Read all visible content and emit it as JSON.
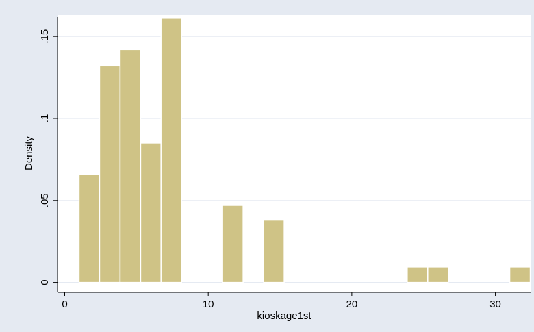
{
  "chart_data": {
    "type": "bar",
    "xlabel": "kioskage1st",
    "ylabel": "Density",
    "xlim": [
      -0.5,
      32.5
    ],
    "ylim": [
      -0.006,
      0.163
    ],
    "x_ticks": [
      0,
      10,
      20,
      30
    ],
    "x_tick_labels": [
      "0",
      "10",
      "20",
      "30"
    ],
    "y_ticks": [
      0,
      0.05,
      0.1,
      0.15
    ],
    "y_tick_labels": [
      "0",
      ".05",
      ".1",
      ".15"
    ],
    "grid": true,
    "bin_width": 1.43,
    "bins": [
      {
        "start": 1.0,
        "value": 0.066
      },
      {
        "start": 2.43,
        "value": 0.132
      },
      {
        "start": 3.86,
        "value": 0.142
      },
      {
        "start": 5.29,
        "value": 0.085
      },
      {
        "start": 6.71,
        "value": 0.161
      },
      {
        "start": 11.0,
        "value": 0.047
      },
      {
        "start": 13.86,
        "value": 0.038
      },
      {
        "start": 23.86,
        "value": 0.0095
      },
      {
        "start": 25.29,
        "value": 0.0095
      },
      {
        "start": 31.0,
        "value": 0.0095
      }
    ],
    "colors": {
      "background": "#e5eaf2",
      "plot_area": "#ffffff",
      "bar_fill": "#cfc386",
      "bar_stroke": "#ffffff",
      "grid": "#e5eaf2",
      "axis": "#000000"
    }
  }
}
